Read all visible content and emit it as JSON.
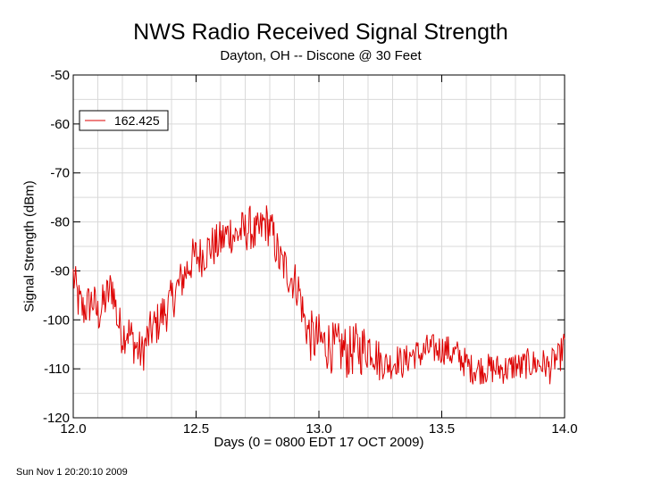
{
  "chart_data": {
    "type": "line",
    "title": "NWS Radio Received Signal Strength",
    "subtitle": "Dayton, OH -- Discone @ 30 Feet",
    "xlabel": "Days (0 = 0800 EDT 17 OCT 2009)",
    "ylabel": "Signal Strength (dBm)",
    "xlim": [
      12.0,
      14.0
    ],
    "ylim": [
      -120,
      -50
    ],
    "x_ticks": [
      "12.0",
      "12.5",
      "13.0",
      "13.5",
      "14.0"
    ],
    "y_ticks": [
      "-50",
      "-60",
      "-70",
      "-80",
      "-90",
      "-100",
      "-110",
      "-120"
    ],
    "grid": true,
    "legend_position": "top-left",
    "series": [
      {
        "name": "162.425",
        "color": "#dd0000",
        "points": [
          [
            12.0,
            -91
          ],
          [
            12.02,
            -96
          ],
          [
            12.04,
            -98
          ],
          [
            12.06,
            -97
          ],
          [
            12.08,
            -96
          ],
          [
            12.1,
            -99
          ],
          [
            12.12,
            -97
          ],
          [
            12.14,
            -95
          ],
          [
            12.16,
            -93
          ],
          [
            12.18,
            -100
          ],
          [
            12.2,
            -103
          ],
          [
            12.22,
            -102
          ],
          [
            12.24,
            -104
          ],
          [
            12.26,
            -106
          ],
          [
            12.28,
            -107
          ],
          [
            12.3,
            -104
          ],
          [
            12.32,
            -102
          ],
          [
            12.34,
            -101
          ],
          [
            12.36,
            -99
          ],
          [
            12.38,
            -98
          ],
          [
            12.4,
            -96
          ],
          [
            12.42,
            -94
          ],
          [
            12.44,
            -92
          ],
          [
            12.46,
            -90
          ],
          [
            12.48,
            -88
          ],
          [
            12.5,
            -87
          ],
          [
            12.52,
            -87
          ],
          [
            12.54,
            -86
          ],
          [
            12.56,
            -85
          ],
          [
            12.58,
            -85
          ],
          [
            12.6,
            -84
          ],
          [
            12.62,
            -83
          ],
          [
            12.64,
            -82
          ],
          [
            12.66,
            -83
          ],
          [
            12.68,
            -82
          ],
          [
            12.7,
            -82
          ],
          [
            12.72,
            -81
          ],
          [
            12.74,
            -83
          ],
          [
            12.76,
            -82
          ],
          [
            12.78,
            -80
          ],
          [
            12.8,
            -81
          ],
          [
            12.82,
            -84
          ],
          [
            12.84,
            -88
          ],
          [
            12.86,
            -89
          ],
          [
            12.88,
            -91
          ],
          [
            12.9,
            -92
          ],
          [
            12.92,
            -94
          ],
          [
            12.94,
            -100
          ],
          [
            12.96,
            -103
          ],
          [
            12.98,
            -104
          ],
          [
            13.0,
            -104
          ],
          [
            13.02,
            -105
          ],
          [
            13.04,
            -105
          ],
          [
            13.06,
            -106
          ],
          [
            13.08,
            -106
          ],
          [
            13.1,
            -106
          ],
          [
            13.12,
            -107
          ],
          [
            13.14,
            -106
          ],
          [
            13.16,
            -106
          ],
          [
            13.18,
            -106
          ],
          [
            13.2,
            -105
          ],
          [
            13.22,
            -106
          ],
          [
            13.24,
            -108
          ],
          [
            13.26,
            -109
          ],
          [
            13.28,
            -109
          ],
          [
            13.3,
            -109
          ],
          [
            13.32,
            -108
          ],
          [
            13.34,
            -109
          ],
          [
            13.36,
            -108
          ],
          [
            13.38,
            -107
          ],
          [
            13.4,
            -107
          ],
          [
            13.42,
            -107
          ],
          [
            13.44,
            -106
          ],
          [
            13.46,
            -106
          ],
          [
            13.48,
            -106
          ],
          [
            13.5,
            -106
          ],
          [
            13.52,
            -106
          ],
          [
            13.54,
            -107
          ],
          [
            13.56,
            -107
          ],
          [
            13.58,
            -108
          ],
          [
            13.6,
            -109
          ],
          [
            13.62,
            -110
          ],
          [
            13.64,
            -110
          ],
          [
            13.66,
            -110
          ],
          [
            13.68,
            -110
          ],
          [
            13.7,
            -110
          ],
          [
            13.72,
            -110
          ],
          [
            13.74,
            -110
          ],
          [
            13.76,
            -110
          ],
          [
            13.78,
            -110
          ],
          [
            13.8,
            -109
          ],
          [
            13.82,
            -110
          ],
          [
            13.84,
            -109
          ],
          [
            13.86,
            -109
          ],
          [
            13.88,
            -109
          ],
          [
            13.9,
            -109
          ],
          [
            13.92,
            -109
          ],
          [
            13.94,
            -110
          ],
          [
            13.96,
            -108
          ],
          [
            13.98,
            -108
          ],
          [
            14.0,
            -104
          ]
        ]
      }
    ]
  },
  "footer": {
    "timestamp": "Sun Nov  1 20:20:10 2009"
  }
}
